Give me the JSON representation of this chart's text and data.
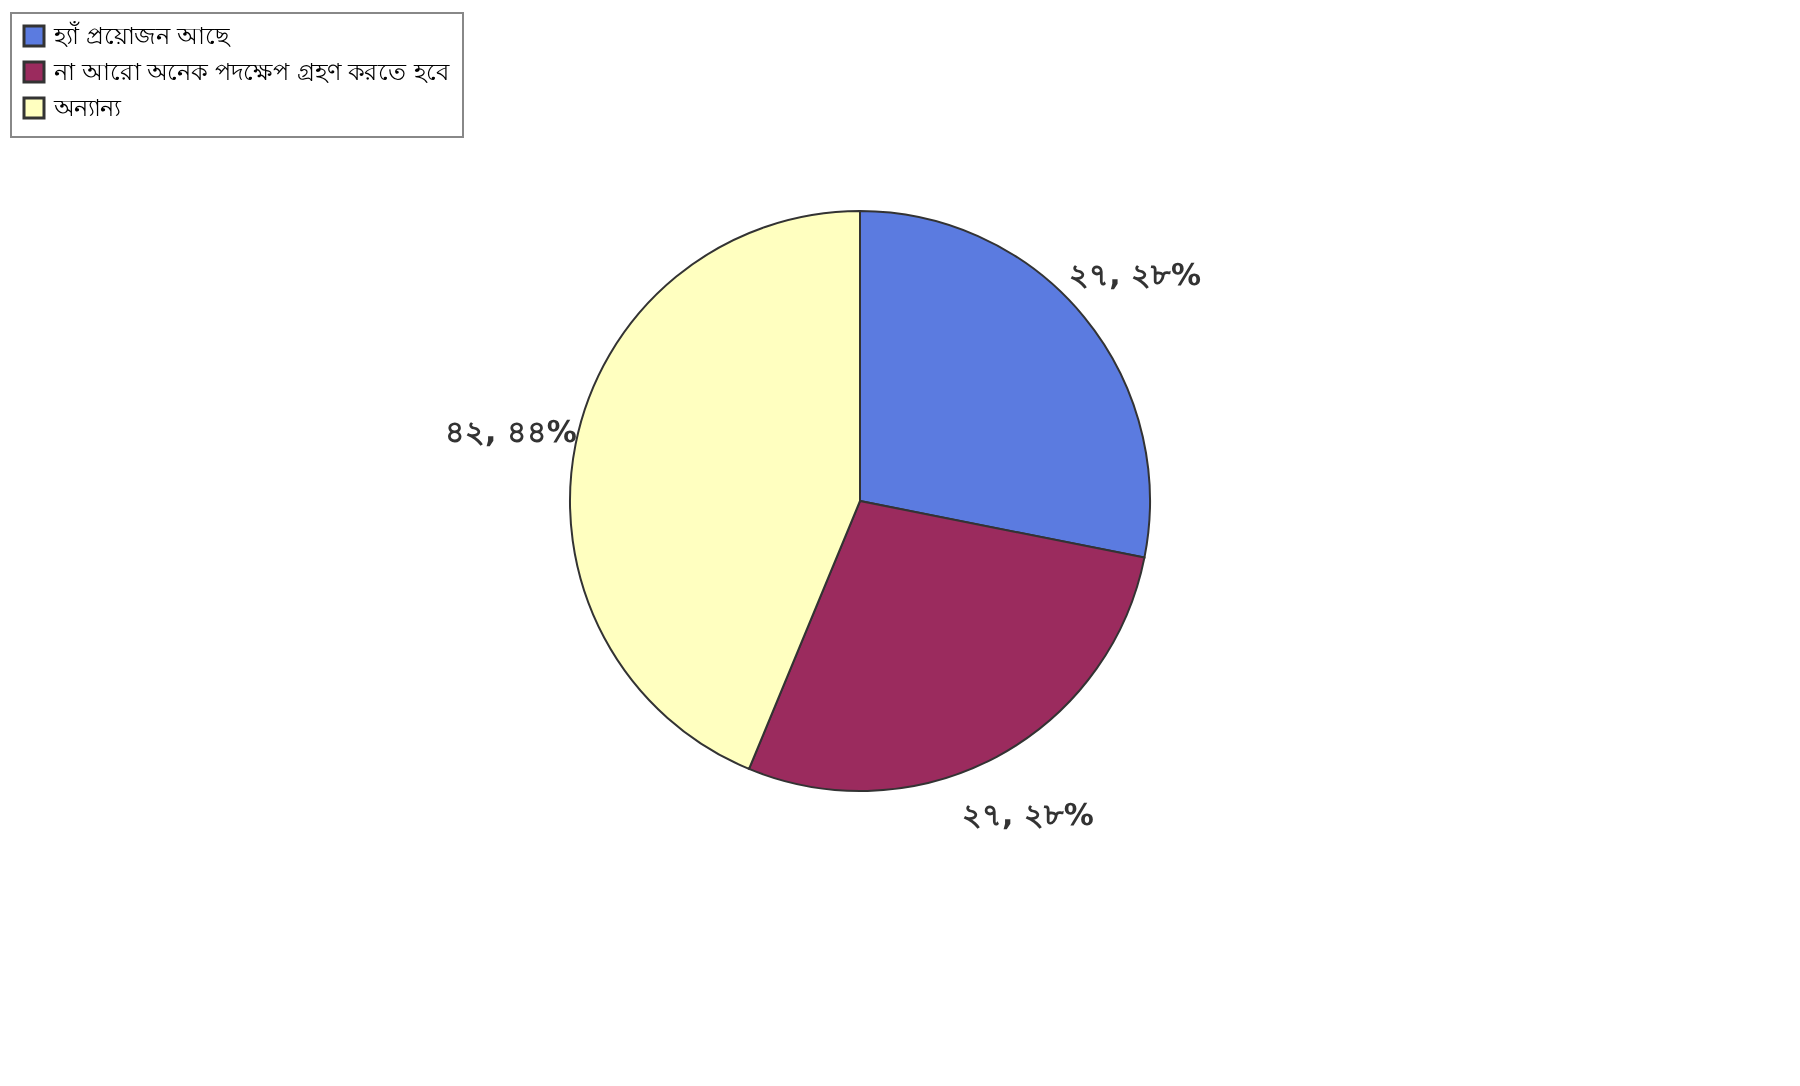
{
  "chart_data": {
    "type": "pie",
    "categories": [
      "হ্যাঁ প্রয়োজন আছে",
      "না আরো অনেক পদক্ষেপ গ্রহণ করতে হবে",
      "অন্যান্য"
    ],
    "values": [
      27,
      27,
      42
    ],
    "value_labels": [
      "২৭, ২৮%",
      "২৭, ২৮%",
      "৪২, ৪৪%"
    ],
    "colors": [
      "#5b7be0",
      "#9b2b5e",
      "#ffffc0"
    ],
    "legend": "top"
  }
}
